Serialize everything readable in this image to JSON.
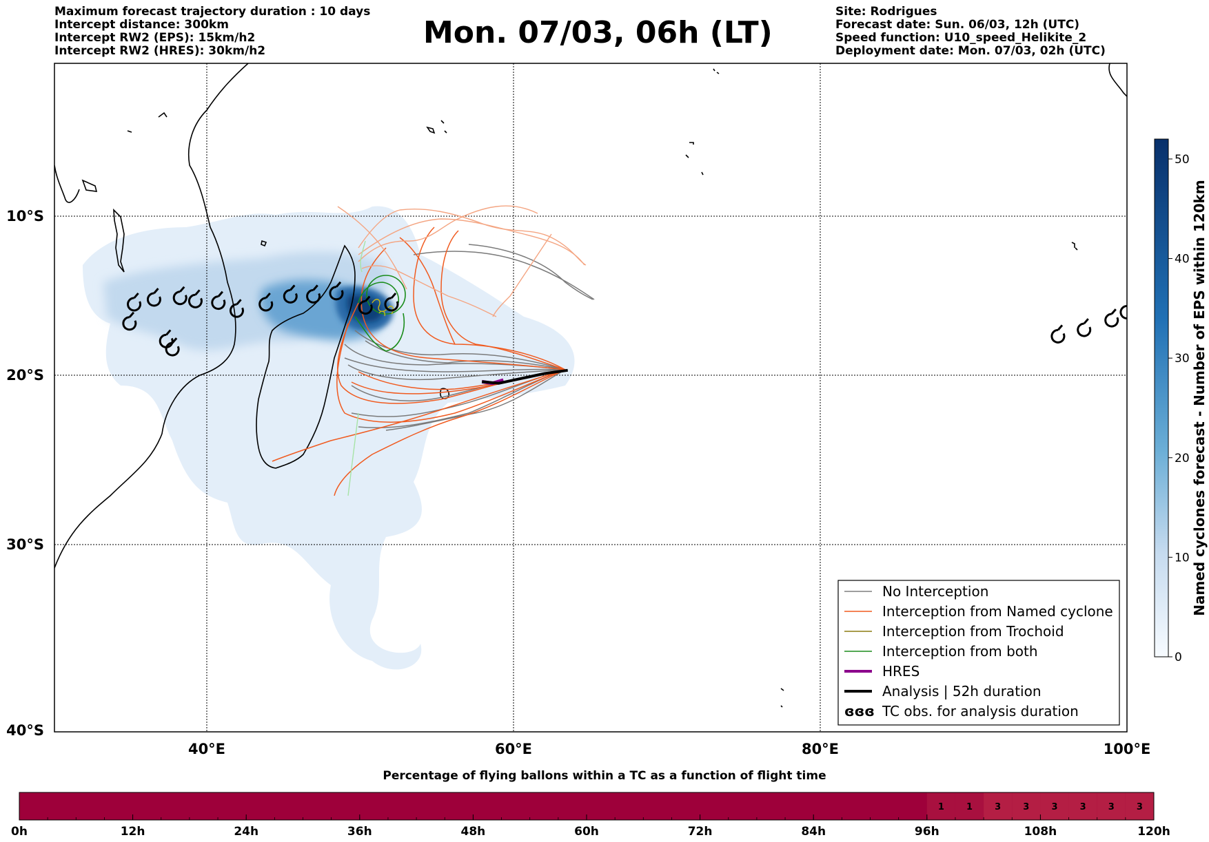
{
  "header_left": [
    "Maximum forecast trajectory duration : 10 days",
    "Intercept distance: 300km",
    "Intercept RW2 (EPS):  15km/h2",
    "Intercept RW2 (HRES): 30km/h2"
  ],
  "header_right": [
    "Site: Rodrigues",
    "Forecast date: Sun. 06/03, 12h (UTC)",
    "Speed function: U10_speed_Helikite_2",
    "Deployment date: Mon. 07/03, 02h (UTC)"
  ],
  "title": "Mon. 07/03, 06h (LT)",
  "map": {
    "lon_labels": [
      "40°E",
      "60°E",
      "80°E",
      "100°E"
    ],
    "lat_labels": [
      "10°S",
      "20°S",
      "30°S",
      "40°S"
    ],
    "lon_range": [
      30,
      100
    ],
    "lat_range": [
      -40,
      2
    ],
    "gridlines": true
  },
  "colorbar": {
    "title": "Named cyclones forecast - Number of EPS within 120km",
    "ticks": [
      "0",
      "10",
      "20",
      "30",
      "40",
      "50"
    ],
    "range": [
      0,
      52
    ],
    "colors": [
      "#f7fbff",
      "#08306b"
    ]
  },
  "legend": {
    "position": "lower-right",
    "items": [
      {
        "label": "No Interception",
        "color": "#7f7f7f"
      },
      {
        "label": "Interception from Named cyclone",
        "color": "#f05a1f"
      },
      {
        "label": "Interception from Trochoid",
        "color": "#8c7a10"
      },
      {
        "label": "Interception from both",
        "color": "#1a8c1a"
      },
      {
        "label": "HRES",
        "color": "#8b008b"
      },
      {
        "label": "Analysis | 52h duration",
        "color": "#000000"
      },
      {
        "label": "TC obs. for analysis duration",
        "symbol": "ɞɞɞ"
      }
    ]
  },
  "tc_obs": [
    [
      34.9,
      -16.8
    ],
    [
      35.2,
      -15.6
    ],
    [
      36.5,
      -15.3
    ],
    [
      38.2,
      -15.2
    ],
    [
      39.2,
      -15.4
    ],
    [
      40.7,
      -15.5
    ],
    [
      41.9,
      -16.0
    ],
    [
      43.8,
      -15.6
    ],
    [
      45.4,
      -15.1
    ],
    [
      46.9,
      -15.1
    ],
    [
      48.4,
      -14.9
    ],
    [
      50.3,
      -15.8
    ],
    [
      52.0,
      -15.6
    ],
    [
      37.3,
      -17.9
    ],
    [
      37.7,
      -18.4
    ],
    [
      95.5,
      -17.6
    ],
    [
      97.2,
      -17.2
    ],
    [
      99.0,
      -16.6
    ],
    [
      100.0,
      -16.1
    ]
  ],
  "analysis_track": [
    [
      57.9,
      -20.4
    ],
    [
      59.0,
      -20.5
    ],
    [
      60.5,
      -20.2
    ],
    [
      62.0,
      -19.9
    ],
    [
      63.5,
      -19.7
    ]
  ],
  "hres_track": [
    [
      57.9,
      -20.4
    ],
    [
      58.6,
      -20.5
    ],
    [
      59.3,
      -20.3
    ]
  ],
  "percentage_bar": {
    "title": "Percentage of flying ballons within a TC as a function of flight time",
    "time_labels": [
      "0h",
      "12h",
      "24h",
      "36h",
      "48h",
      "60h",
      "72h",
      "84h",
      "96h",
      "108h",
      "120h"
    ],
    "time_range_h": [
      0,
      120
    ],
    "segment_hours": 3,
    "cell_labels": [
      "1",
      "1",
      "3",
      "3",
      "3",
      "3",
      "3",
      "3"
    ],
    "labeled_start_h": 96,
    "base_color": "#9e003a",
    "cell_colors": [
      "#a8103f",
      "#a8103f",
      "#b41e44",
      "#b41e44",
      "#b41e44",
      "#b41e44",
      "#b41e44",
      "#b41e44"
    ]
  }
}
